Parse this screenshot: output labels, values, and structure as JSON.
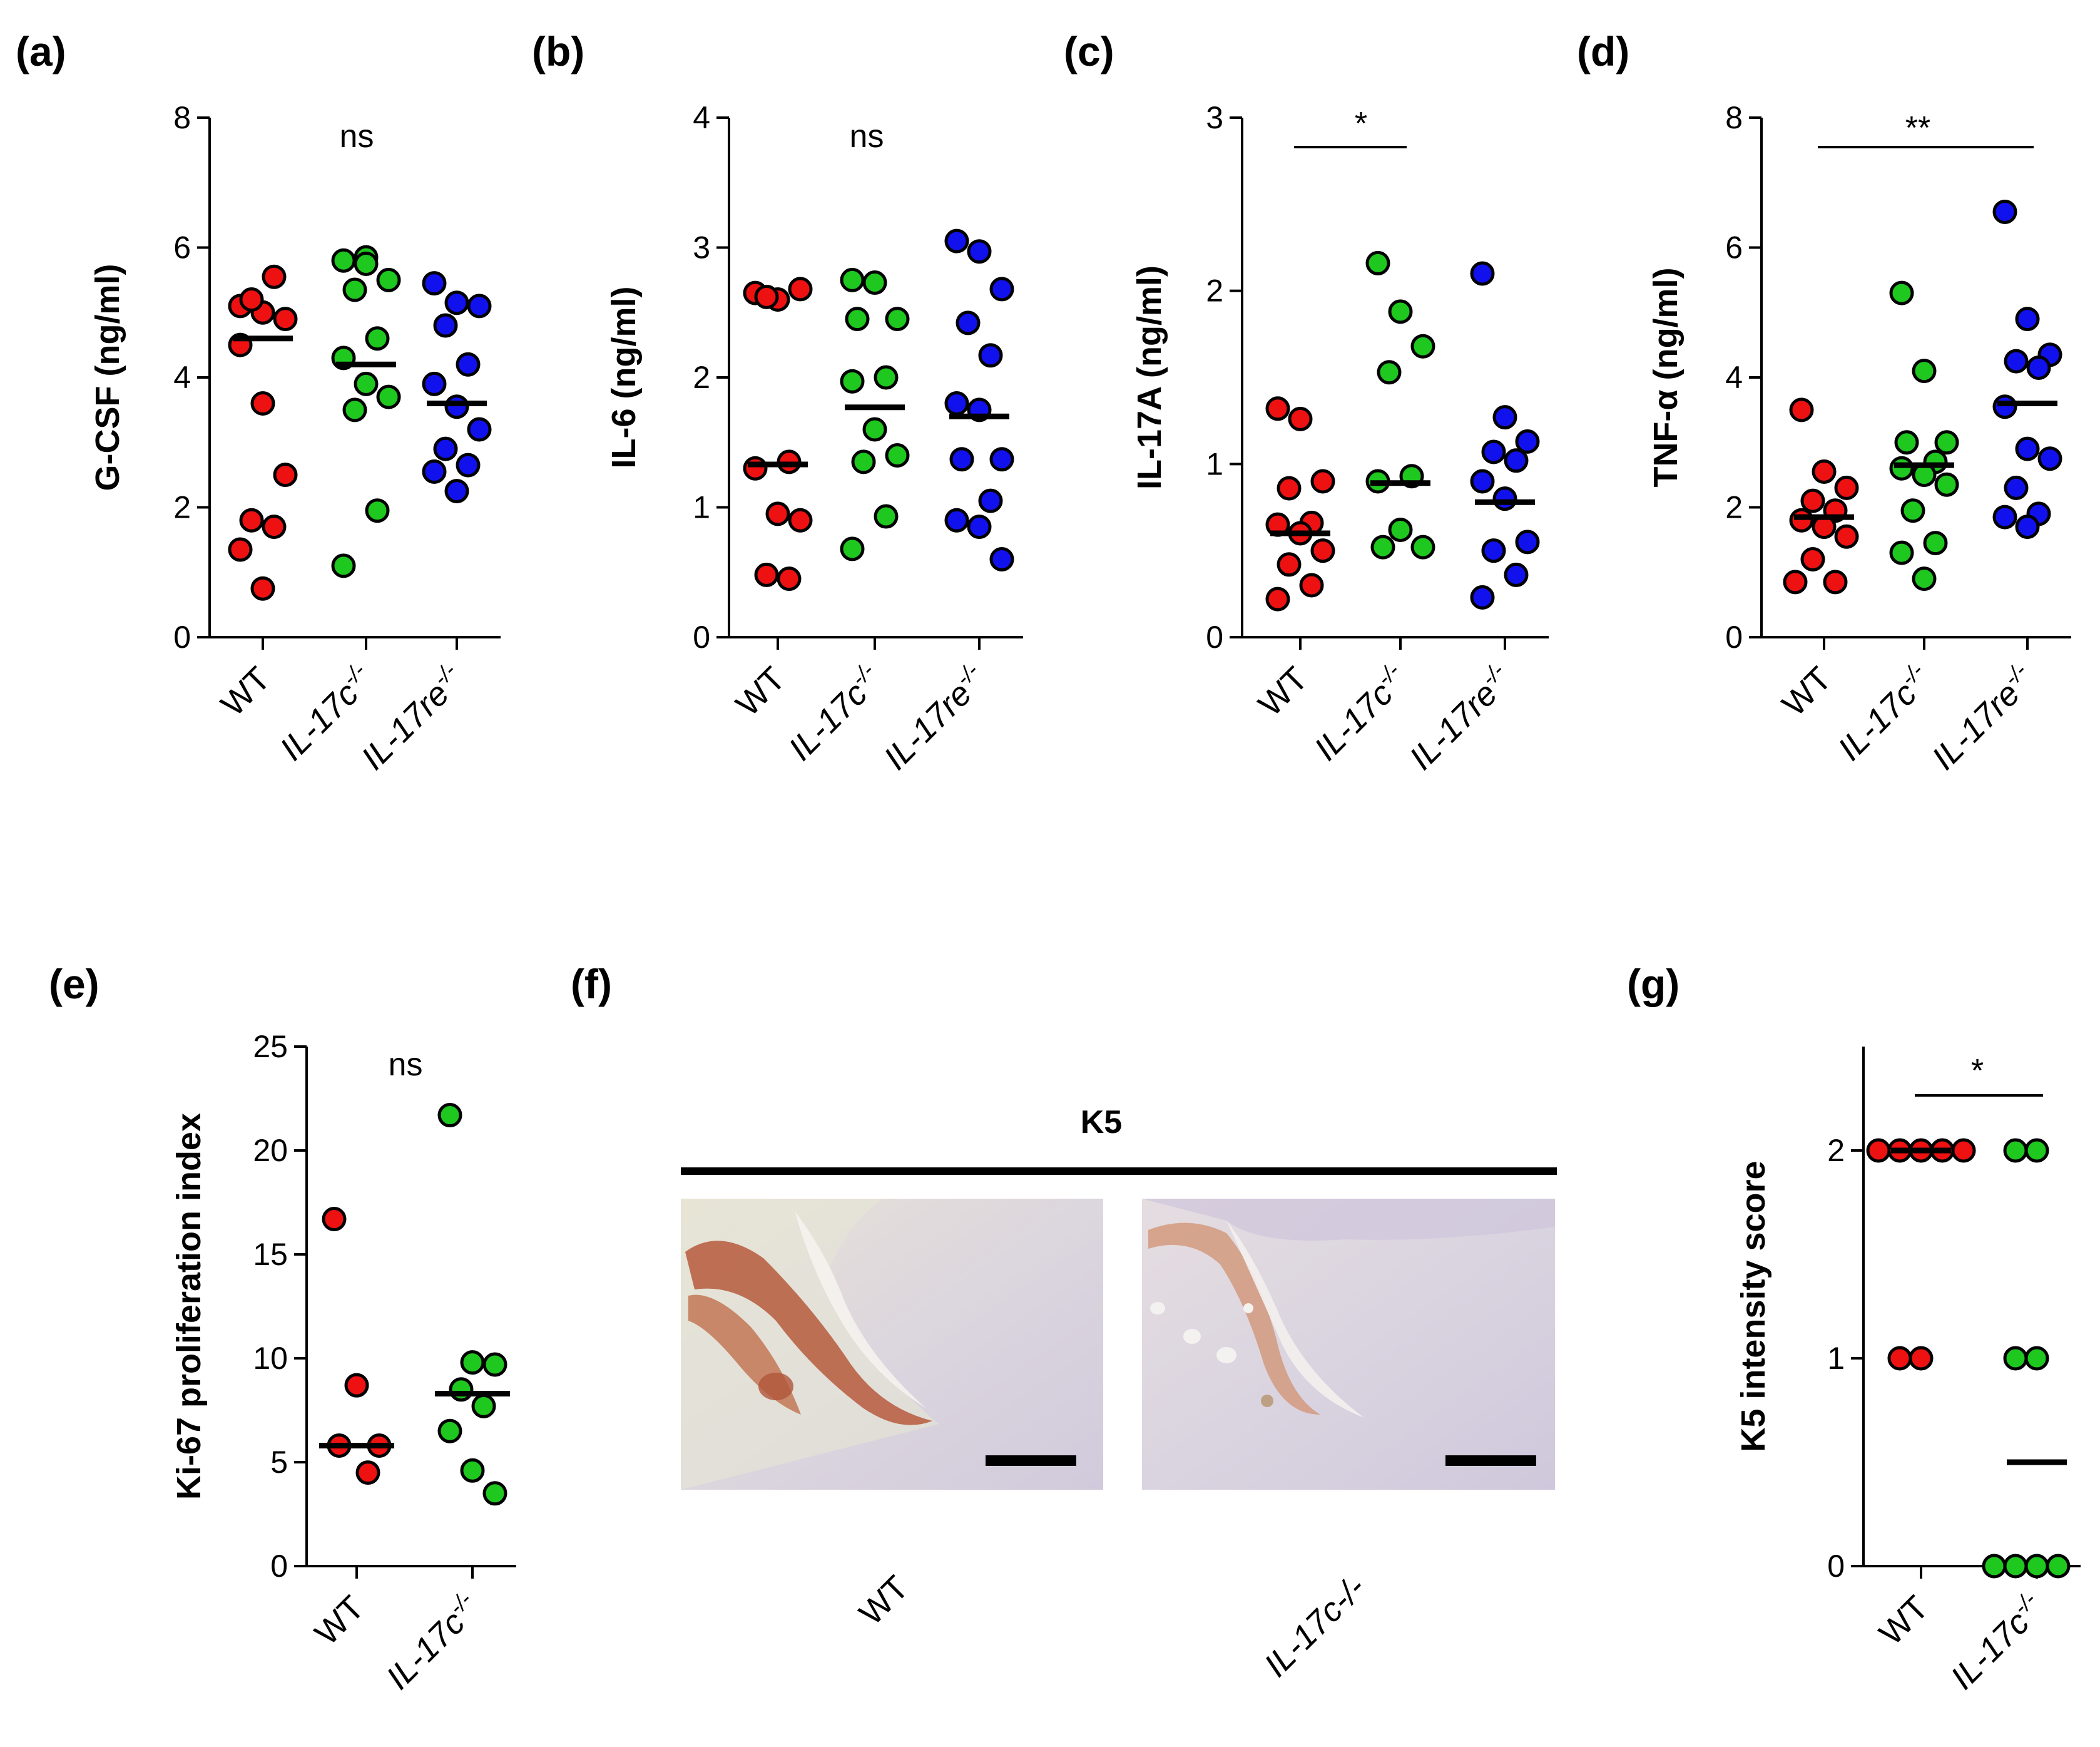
{
  "colors": {
    "red": "#ee1111",
    "green": "#1ec81e",
    "blue": "#1111ee"
  },
  "chart_data": [
    {
      "type": "scatter",
      "panel": "(a)",
      "ylabel": "G-CSF (ng/ml)",
      "ylim": [
        0,
        8
      ],
      "yticks": [
        "0",
        "2",
        "4",
        "6",
        "8"
      ],
      "significance": "ns",
      "categories": [
        "WT",
        "IL-17c-/-",
        "IL-17re-/-"
      ],
      "groups": [
        {
          "name": "WT",
          "color": "red",
          "mean": 4.6,
          "values": [
            5.1,
            5.0,
            4.9,
            5.2,
            5.55,
            4.5,
            3.6,
            2.5,
            1.8,
            1.7,
            1.35,
            0.75
          ]
        },
        {
          "name": "IL-17c-/-",
          "color": "green",
          "mean": 4.2,
          "values": [
            5.8,
            5.85,
            5.5,
            5.35,
            4.6,
            4.3,
            3.9,
            3.7,
            3.5,
            1.95,
            1.1,
            5.75
          ]
        },
        {
          "name": "IL-17re-/-",
          "color": "blue",
          "mean": 3.6,
          "values": [
            5.45,
            5.15,
            5.1,
            4.8,
            4.2,
            3.9,
            3.55,
            3.2,
            2.9,
            2.65,
            2.55,
            2.25
          ]
        }
      ]
    },
    {
      "type": "scatter",
      "panel": "(b)",
      "ylabel": "IL-6 (ng/ml)",
      "ylim": [
        0,
        4
      ],
      "yticks": [
        "0",
        "1",
        "2",
        "3",
        "4"
      ],
      "significance": "ns",
      "categories": [
        "WT",
        "IL-17c-/-",
        "IL-17re-/-"
      ],
      "groups": [
        {
          "name": "WT",
          "color": "red",
          "mean": 1.33,
          "values": [
            2.65,
            2.6,
            2.68,
            2.62,
            1.35,
            1.3,
            0.95,
            0.9,
            0.48,
            0.45
          ]
        },
        {
          "name": "IL-17c-/-",
          "color": "green",
          "mean": 1.77,
          "values": [
            2.75,
            2.73,
            2.45,
            2.45,
            2.0,
            1.97,
            1.6,
            1.4,
            1.35,
            0.93,
            0.68
          ]
        },
        {
          "name": "IL-17re-/-",
          "color": "blue",
          "mean": 1.7,
          "values": [
            3.05,
            2.97,
            2.68,
            2.42,
            2.17,
            1.8,
            1.75,
            1.37,
            1.37,
            1.05,
            0.9,
            0.85,
            0.6
          ]
        }
      ]
    },
    {
      "type": "scatter",
      "panel": "(c)",
      "ylabel": "IL-17A (ng/ml)",
      "ylim": [
        0,
        3
      ],
      "yticks": [
        "0",
        "1",
        "2",
        "3"
      ],
      "significance": "*",
      "sig_between": [
        "WT",
        "IL-17c-/-"
      ],
      "categories": [
        "WT",
        "IL-17c-/-",
        "IL-17re-/-"
      ],
      "groups": [
        {
          "name": "WT",
          "color": "red",
          "mean": 0.6,
          "values": [
            1.32,
            1.26,
            0.9,
            0.86,
            0.66,
            0.65,
            0.6,
            0.5,
            0.42,
            0.3,
            0.22
          ]
        },
        {
          "name": "IL-17c-/-",
          "color": "green",
          "mean": 0.89,
          "values": [
            2.16,
            1.88,
            1.68,
            1.53,
            0.93,
            0.9,
            0.62,
            0.52,
            0.52
          ]
        },
        {
          "name": "IL-17re-/-",
          "color": "blue",
          "mean": 0.78,
          "values": [
            2.1,
            1.27,
            1.13,
            1.07,
            1.02,
            0.9,
            0.8,
            0.55,
            0.5,
            0.36,
            0.23
          ]
        }
      ]
    },
    {
      "type": "scatter",
      "panel": "(d)",
      "ylabel": "TNF-α (ng/ml)",
      "ylim": [
        0,
        8
      ],
      "yticks": [
        "0",
        "2",
        "4",
        "6",
        "8"
      ],
      "significance": "**",
      "sig_between": [
        "WT",
        "IL-17re-/-"
      ],
      "categories": [
        "WT",
        "IL-17c-/-",
        "IL-17re-/-"
      ],
      "groups": [
        {
          "name": "WT",
          "color": "red",
          "mean": 1.85,
          "values": [
            3.5,
            2.55,
            2.3,
            2.1,
            1.95,
            1.8,
            1.7,
            1.55,
            1.2,
            0.85,
            0.85
          ]
        },
        {
          "name": "IL-17c-/-",
          "color": "green",
          "mean": 2.65,
          "values": [
            5.3,
            4.1,
            3.0,
            3.0,
            2.7,
            2.6,
            2.5,
            2.35,
            1.95,
            1.45,
            1.3,
            0.9
          ]
        },
        {
          "name": "IL-17re-/-",
          "color": "blue",
          "mean": 3.6,
          "values": [
            6.55,
            4.9,
            4.35,
            4.25,
            4.15,
            3.55,
            2.9,
            2.75,
            2.3,
            1.9,
            1.85,
            1.7
          ]
        }
      ]
    },
    {
      "type": "scatter",
      "panel": "(e)",
      "ylabel": "Ki-67 proliferation index",
      "ylim": [
        0,
        25
      ],
      "yticks": [
        "0",
        "5",
        "10",
        "15",
        "20",
        "25"
      ],
      "significance": "ns",
      "categories": [
        "WT",
        "IL-17c-/-"
      ],
      "groups": [
        {
          "name": "WT",
          "color": "red",
          "mean": 5.8,
          "values": [
            16.7,
            8.7,
            5.8,
            5.8,
            4.5
          ]
        },
        {
          "name": "IL-17c-/-",
          "color": "green",
          "mean": 8.3,
          "values": [
            21.7,
            9.8,
            9.7,
            8.5,
            7.7,
            6.5,
            4.6,
            3.5
          ]
        }
      ]
    },
    {
      "type": "scatter",
      "panel": "(g)",
      "ylabel": "K5 intensity score",
      "ylim": [
        0,
        2.5
      ],
      "yticks": [
        "0",
        "1",
        "2"
      ],
      "significance": "*",
      "sig_between": [
        "WT",
        "IL-17c-/-"
      ],
      "categories": [
        "WT",
        "IL-17c-/-"
      ],
      "groups": [
        {
          "name": "WT",
          "color": "red",
          "mean": 2.0,
          "values": [
            2,
            2,
            2,
            2,
            2,
            1,
            1
          ]
        },
        {
          "name": "IL-17c-/-",
          "color": "green",
          "mean": 0.5,
          "values": [
            2,
            2,
            1,
            1,
            0,
            0,
            0,
            0
          ]
        }
      ]
    }
  ],
  "panel_f": {
    "label": "(f)",
    "header": "K5",
    "images": [
      {
        "caption": "WT",
        "description": "K5 immunostaining"
      },
      {
        "caption": "IL-17c-/-",
        "description": "K5 immunostaining"
      }
    ]
  }
}
